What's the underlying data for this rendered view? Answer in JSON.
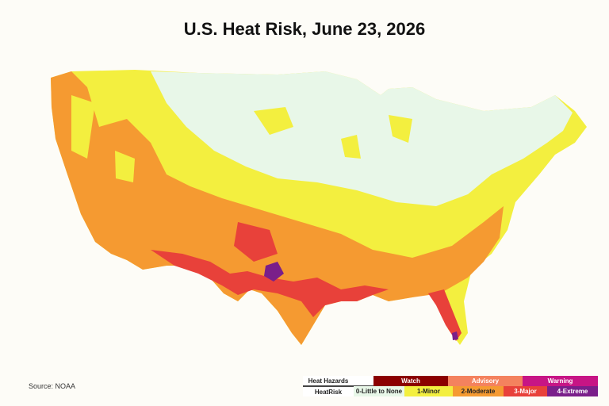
{
  "title": "U.S. Heat Risk, June 23, 2026",
  "source": "Source: NOAA",
  "legend": {
    "hazards_label": "Heat Hazards",
    "hazards": [
      {
        "label": "Watch",
        "color": "#8b0000",
        "text_color": "#ffffff"
      },
      {
        "label": "Advisory",
        "color": "#f4825e",
        "text_color": "#ffffff"
      },
      {
        "label": "Warning",
        "color": "#c71585",
        "text_color": "#ffffff"
      }
    ],
    "risk_label": "HeatRisk",
    "risk_levels": [
      {
        "label": "0-Little to None",
        "color": "#e8f7e8",
        "text_color": "#222222"
      },
      {
        "label": "1-Minor",
        "color": "#f3ef3f",
        "text_color": "#222222"
      },
      {
        "label": "2-Moderate",
        "color": "#f59a31",
        "text_color": "#222222"
      },
      {
        "label": "3-Major",
        "color": "#e8413a",
        "text_color": "#ffffff"
      },
      {
        "label": "4-Extreme",
        "color": "#7a1f8a",
        "text_color": "#ffffff"
      }
    ]
  }
}
